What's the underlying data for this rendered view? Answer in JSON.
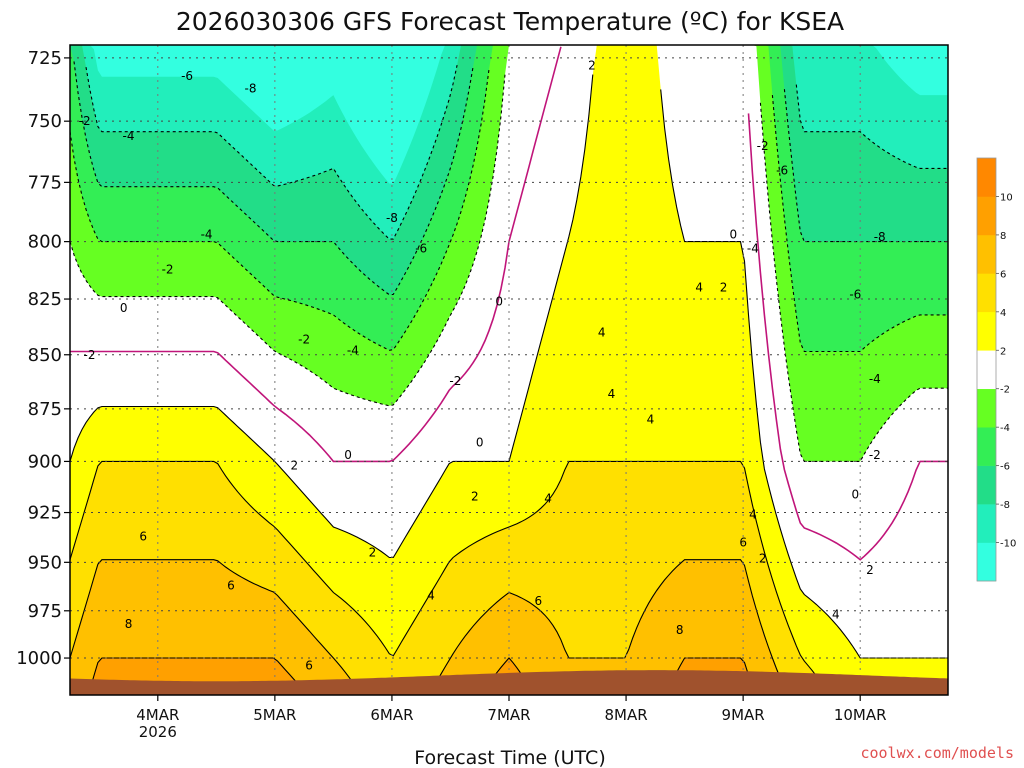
{
  "chart_data": {
    "type": "heatmap",
    "title": "2026030306 GFS Forecast Temperature (ºC) for KSEA",
    "xlabel": "Forecast Time (UTC)",
    "ylabel": "",
    "y_axis": {
      "ticks": [
        725,
        750,
        775,
        800,
        825,
        850,
        875,
        900,
        925,
        950,
        975,
        1000
      ],
      "range": [
        1020,
        720
      ],
      "unit": "hPa"
    },
    "x_axis": {
      "ticks": [
        {
          "label": "4MAR",
          "sub": "2026",
          "t": 18
        },
        {
          "label": "5MAR",
          "sub": "",
          "t": 42
        },
        {
          "label": "6MAR",
          "sub": "",
          "t": 66
        },
        {
          "label": "7MAR",
          "sub": "",
          "t": 90
        },
        {
          "label": "8MAR",
          "sub": "",
          "t": 114
        },
        {
          "label": "9MAR",
          "sub": "",
          "t": 138
        },
        {
          "label": "10MAR",
          "sub": "",
          "t": 162
        }
      ],
      "range": [
        0,
        180
      ],
      "unit": "forecast hour"
    },
    "grid": true,
    "colorbar": {
      "levels": [
        -12,
        -10,
        -8,
        -6,
        -4,
        -2,
        2,
        4,
        6,
        8,
        10,
        12
      ],
      "labels": [
        "-10",
        "-8",
        "-6",
        "-4",
        "-2",
        "2",
        "4",
        "6",
        "8",
        "10"
      ],
      "colors": [
        "#33ffe0",
        "#22eebb",
        "#22dd88",
        "#33ee55",
        "#66ff22",
        "#ffffff",
        "#ffff00",
        "#ffe000",
        "#ffc000",
        "#ffa000",
        "#ff8800"
      ]
    },
    "surface_color": "#a0522d",
    "series": [
      {
        "t": 0,
        "p800": -2,
        "p900": 2,
        "p1000": 6
      },
      {
        "t": 6,
        "p800": -4,
        "p900": 4,
        "p1000": 8
      },
      {
        "t": 18,
        "p800": -4,
        "p900": 4,
        "p1000": 8
      },
      {
        "t": 30,
        "p800": -4,
        "p900": 4,
        "p1000": 8
      },
      {
        "t": 42,
        "p800": -6,
        "p900": 2,
        "p1000": 8
      },
      {
        "t": 54,
        "p800": -6,
        "p900": 0,
        "p1000": 6
      },
      {
        "t": 66,
        "p800": -8,
        "p900": 0,
        "p1000": 4
      },
      {
        "t": 78,
        "p800": -4,
        "p900": 2,
        "p1000": 6
      },
      {
        "t": 90,
        "p800": 0,
        "p900": 2,
        "p1000": 8
      },
      {
        "t": 102,
        "p800": 2,
        "p900": 4,
        "p1000": 6
      },
      {
        "t": 114,
        "p800": 4,
        "p900": 4,
        "p1000": 6
      },
      {
        "t": 126,
        "p800": 2,
        "p900": 4,
        "p1000": 8
      },
      {
        "t": 138,
        "p800": 2,
        "p900": 4,
        "p1000": 8
      },
      {
        "t": 150,
        "p800": -6,
        "p900": -2,
        "p1000": 4
      },
      {
        "t": 162,
        "p800": -6,
        "p900": -2,
        "p1000": 2
      },
      {
        "t": 174,
        "p800": -6,
        "p900": 0,
        "p1000": 2
      }
    ],
    "contour_labels": [
      {
        "v": "-6",
        "t": 24,
        "p": 732
      },
      {
        "v": "-8",
        "t": 37,
        "p": 737
      },
      {
        "v": "-2",
        "t": 3,
        "p": 750
      },
      {
        "v": "-4",
        "t": 12,
        "p": 756
      },
      {
        "v": "-8",
        "t": 66,
        "p": 790
      },
      {
        "v": "-6",
        "t": 72,
        "p": 803
      },
      {
        "v": "-4",
        "t": 28,
        "p": 797
      },
      {
        "v": "-2",
        "t": 20,
        "p": 812
      },
      {
        "v": "0",
        "t": 11,
        "p": 829
      },
      {
        "v": "-2",
        "t": 4,
        "p": 850
      },
      {
        "v": "-2",
        "t": 48,
        "p": 843
      },
      {
        "v": "-4",
        "t": 58,
        "p": 848
      },
      {
        "v": "-2",
        "t": 79,
        "p": 862
      },
      {
        "v": "0",
        "t": 88,
        "p": 826
      },
      {
        "v": "0",
        "t": 57,
        "p": 897
      },
      {
        "v": "0",
        "t": 84,
        "p": 891
      },
      {
        "v": "2",
        "t": 46,
        "p": 902
      },
      {
        "v": "2",
        "t": 83,
        "p": 917
      },
      {
        "v": "4",
        "t": 98,
        "p": 918
      },
      {
        "v": "2",
        "t": 107,
        "p": 728
      },
      {
        "v": "4",
        "t": 109,
        "p": 840
      },
      {
        "v": "4",
        "t": 111,
        "p": 868
      },
      {
        "v": "4",
        "t": 119,
        "p": 880
      },
      {
        "v": "4",
        "t": 129,
        "p": 820
      },
      {
        "v": "2",
        "t": 134,
        "p": 820
      },
      {
        "v": "6",
        "t": 15,
        "p": 937
      },
      {
        "v": "6",
        "t": 33,
        "p": 962
      },
      {
        "v": "8",
        "t": 12,
        "p": 982
      },
      {
        "v": "2",
        "t": 62,
        "p": 945
      },
      {
        "v": "4",
        "t": 74,
        "p": 967
      },
      {
        "v": "6",
        "t": 96,
        "p": 970
      },
      {
        "v": "8",
        "t": 125,
        "p": 985
      },
      {
        "v": "6",
        "t": 138,
        "p": 940
      },
      {
        "v": "4",
        "t": 140,
        "p": 926
      },
      {
        "v": "2",
        "t": 142,
        "p": 948
      },
      {
        "v": "4",
        "t": 157,
        "p": 977
      },
      {
        "v": "2",
        "t": 164,
        "p": 954
      },
      {
        "v": "0",
        "t": 161,
        "p": 916
      },
      {
        "v": "-2",
        "t": 142,
        "p": 760
      },
      {
        "v": "-6",
        "t": 146,
        "p": 770
      },
      {
        "v": "0",
        "t": 136,
        "p": 797
      },
      {
        "v": "-4",
        "t": 140,
        "p": 803
      },
      {
        "v": "-8",
        "t": 166,
        "p": 798
      },
      {
        "v": "-6",
        "t": 161,
        "p": 823
      },
      {
        "v": "-4",
        "t": 165,
        "p": 861
      },
      {
        "v": "-2",
        "t": 165,
        "p": 897
      },
      {
        "v": "6",
        "t": 49,
        "p": 1004
      }
    ]
  },
  "credit": "coolwx.com/models"
}
